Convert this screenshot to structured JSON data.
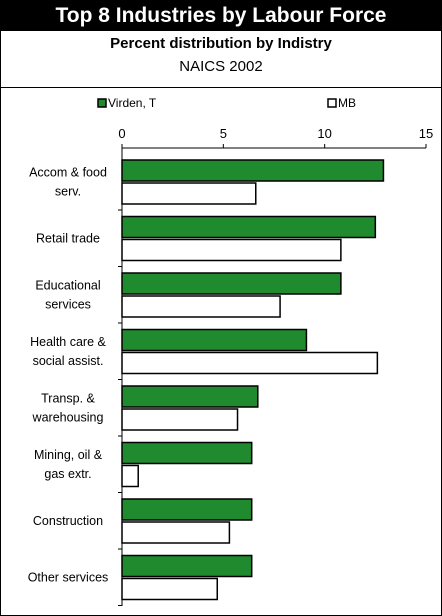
{
  "header": {
    "title": "Top 8 Industries by Labour Force",
    "subtitle": "Percent distribution by Indistry",
    "subtitle2": "NAICS 2002"
  },
  "colors": {
    "series_1": "#1f8a2e",
    "series_2": "#ffffff",
    "stroke": "#000000"
  },
  "chart_data": {
    "type": "bar",
    "orientation": "horizontal",
    "categories": [
      [
        "Accom & food",
        "serv."
      ],
      [
        "Retail trade"
      ],
      [
        "Educational",
        "services"
      ],
      [
        "Health care &",
        "social assist."
      ],
      [
        "Transp. &",
        "warehousing"
      ],
      [
        "Mining, oil &",
        "gas extr."
      ],
      [
        "Construction"
      ],
      [
        "Other services"
      ]
    ],
    "series": [
      {
        "name": "Virden, T",
        "values": [
          12.9,
          12.5,
          10.8,
          9.1,
          6.7,
          6.4,
          6.4,
          6.4
        ]
      },
      {
        "name": "MB",
        "values": [
          6.6,
          10.8,
          7.8,
          12.6,
          5.7,
          0.8,
          5.3,
          4.7
        ]
      }
    ],
    "xlim": [
      0,
      15
    ],
    "ticks": [
      0,
      5,
      10,
      15
    ],
    "tick_labels": [
      "0",
      "5",
      "10",
      "15"
    ],
    "legend_position": "top",
    "grid": false,
    "xlabel": "",
    "ylabel": ""
  }
}
